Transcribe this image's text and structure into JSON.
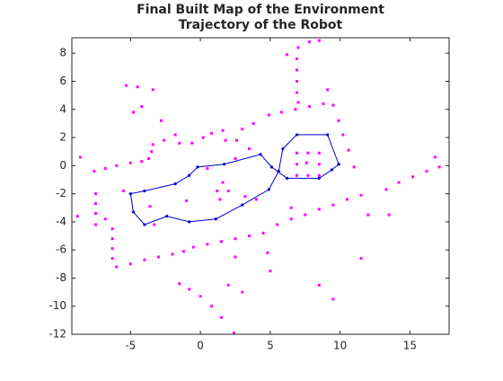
{
  "chart_data": {
    "type": "scatter",
    "title": "Final Built Map of the Environment",
    "subtitle": "Trajectory of the Robot",
    "xlim": [
      -9.2,
      17.8
    ],
    "ylim": [
      -12,
      9.1
    ],
    "xticks": [
      -5,
      0,
      5,
      10,
      15
    ],
    "yticks": [
      -12,
      -10,
      -8,
      -6,
      -4,
      -2,
      0,
      2,
      4,
      6,
      8
    ],
    "grid": false,
    "series": [
      {
        "type": "scatter",
        "color": "#ff00ff",
        "x": [
          -6,
          -5,
          -4,
          -3,
          -2,
          -1.2,
          -0.5,
          0.5,
          1.5,
          2.5,
          3.5,
          4.5,
          5.5,
          6.5,
          7.5,
          8.5,
          9.5,
          10.5,
          11.5,
          -6.3,
          -6.3,
          -6.3,
          -6.3,
          -7.5,
          -7.5,
          -7.5,
          -7.5,
          -6.8,
          -7.6,
          -6.8,
          -6,
          -5,
          -4.2,
          -3.7,
          -3.5,
          -3.4,
          -2.6,
          -1.8,
          -1.5,
          -0.6,
          0.2,
          0.8,
          1.6,
          1.8,
          2.6,
          3.0,
          3.8,
          4.9,
          5.8,
          6.8,
          7.8,
          8.8,
          6.9,
          6.9,
          6.9,
          6.9,
          7.0,
          6.2,
          7.0,
          7.8,
          8.5,
          9.1,
          9.5,
          9.9,
          10.2,
          10.6,
          11,
          6.9,
          7.7,
          8.5,
          6.9,
          6.9,
          7.7,
          8.5,
          8.5,
          7.6,
          13.3,
          14.2,
          15.2,
          16.2,
          17.1,
          13.5,
          16.8,
          -1.5,
          -0.8,
          0,
          0.8,
          1.5,
          2.4,
          3,
          2,
          -5.3,
          -4.5,
          -3.4,
          -4.2,
          -4.8,
          -2.8,
          -8.6,
          -8.8,
          -5.5,
          -3.3,
          -3.6,
          1.2,
          1.6,
          2.0,
          1.4,
          3.2,
          4.0,
          6.5,
          0.5,
          2.5,
          3.5,
          -1,
          12,
          11.5,
          5,
          4.8,
          2.5,
          8.5,
          9.5
        ],
        "values": [
          -7.2,
          -7.0,
          -6.7,
          -6.5,
          -6.3,
          -6.1,
          -5.8,
          -5.6,
          -5.4,
          -5.2,
          -5.0,
          -4.8,
          -4.2,
          -3.8,
          -3.5,
          -3.1,
          -2.8,
          -2.4,
          -2.1,
          -4.5,
          -5.2,
          -5.9,
          -6.6,
          -2,
          -2.7,
          -3.4,
          -4.2,
          -3.8,
          -0.4,
          -0.2,
          0,
          0.2,
          0.3,
          0.5,
          1.0,
          1.5,
          1.8,
          2.2,
          1.6,
          1.6,
          2.0,
          2.3,
          2.5,
          1.8,
          1.8,
          2.6,
          3.0,
          3.6,
          3.8,
          4.0,
          4.2,
          4.4,
          7.6,
          6.8,
          6.0,
          5.2,
          4.5,
          7.9,
          8.4,
          8.8,
          8.9,
          5.4,
          4.3,
          3.2,
          2.2,
          1.1,
          -0.1,
          0.9,
          0.9,
          0.9,
          0.1,
          -0.7,
          -0.7,
          -0.7,
          0.1,
          0.2,
          -1.7,
          -1.2,
          -0.8,
          -0.4,
          -0.1,
          -3.5,
          0.6,
          -8.4,
          -8.8,
          -9.3,
          -10,
          -10.8,
          -11.9,
          -9,
          -8.5,
          5.7,
          5.6,
          5.4,
          4.2,
          3.8,
          3.2,
          0.6,
          -3.6,
          -1.8,
          -4.2,
          -2.9,
          -1.8,
          -1.2,
          -1.8,
          -2.4,
          -2.2,
          -2.4,
          -3.0,
          -0.2,
          0.5,
          1.2,
          -2.5,
          -3.5,
          -6.6,
          -7.5,
          -6.2,
          -6.5,
          -8.5,
          -9.5
        ]
      },
      {
        "type": "line",
        "color": "#0000cc",
        "x": [
          9.9,
          9.1,
          6.9,
          5.9,
          5.6,
          4.9,
          3,
          1.1,
          -0.8,
          -2.4,
          -4,
          -4.8,
          -5,
          -4,
          -1.8,
          -0.8,
          -0.2,
          1.7,
          4.3,
          5.1,
          6.2,
          8.5,
          9.4,
          9.9
        ],
        "values": [
          0.1,
          2.2,
          2.2,
          1.2,
          -0.4,
          -1.7,
          -2.8,
          -3.8,
          -4,
          -3.6,
          -4.2,
          -3.3,
          -2,
          -1.8,
          -1.3,
          -0.7,
          -0.1,
          0.1,
          0.8,
          -0.1,
          -0.9,
          -0.9,
          -0.3,
          0.1
        ]
      }
    ]
  }
}
